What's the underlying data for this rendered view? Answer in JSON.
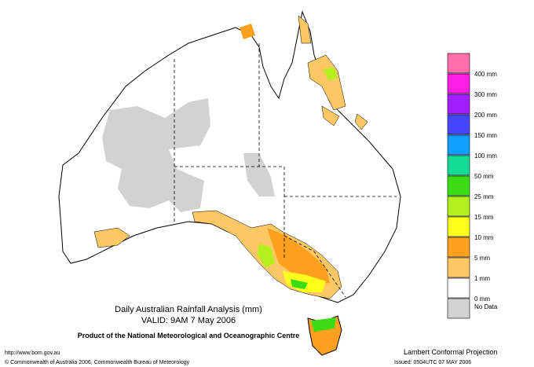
{
  "header": {
    "title": "Daily Australian Rainfall Analysis (mm)",
    "valid": "VALID: 9AM  7 May 2006",
    "product": "Product of the National Meteorological and Oceanographic Centre"
  },
  "legend": {
    "colors": [
      "#ff6ea8",
      "#ff1ee6",
      "#a01eff",
      "#4646ff",
      "#0fa0ff",
      "#14dc96",
      "#3cdc14",
      "#b4f01e",
      "#ffff1e",
      "#ffa01e",
      "#ffc864",
      "#ffffff",
      "#d2d2d2"
    ],
    "labels": [
      "400 mm",
      "300 mm",
      "200 mm",
      "150 mm",
      "100 mm",
      "50 mm",
      "25 mm",
      "15 mm",
      "10 mm",
      "5 mm",
      "1 mm",
      "0 mm",
      "No Data"
    ]
  },
  "footer": {
    "url": "http://www.bom.gov.au",
    "copyright": "© Commonwealth of Australia 2006, Commonwealth Bureau of Meteorology",
    "projection": "Lambert Conformal Projection",
    "issued": "Issued: 0504UTC 07 MAY 2006"
  }
}
